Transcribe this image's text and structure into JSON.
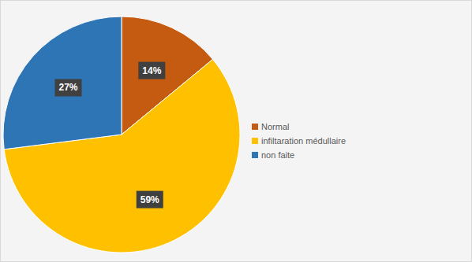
{
  "chart_data": {
    "type": "pie",
    "categories": [
      "Normal",
      "infiltaration médullaire",
      "non faite"
    ],
    "values": [
      14,
      59,
      27
    ],
    "value_labels": [
      "14%",
      "59%",
      "27%"
    ],
    "colors": [
      "#c55a11",
      "#ffc000",
      "#2e75b6"
    ],
    "data_labels": true,
    "legend": "right"
  }
}
